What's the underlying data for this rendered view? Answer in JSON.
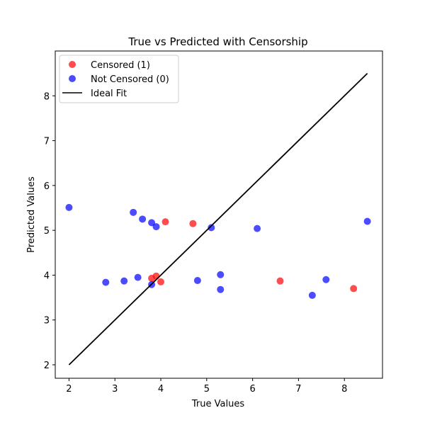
{
  "chart_data": {
    "type": "scatter",
    "title": "True vs Predicted with Censorship",
    "xlabel": "True Values",
    "ylabel": "Predicted Values",
    "xlim": [
      1.7,
      8.83
    ],
    "ylim": [
      1.7,
      9.0
    ],
    "xticks": [
      2,
      3,
      4,
      5,
      6,
      7,
      8
    ],
    "yticks": [
      2,
      3,
      4,
      5,
      6,
      7,
      8
    ],
    "grid": false,
    "legend_position": "top-left",
    "series": [
      {
        "name": "Censored (1)",
        "color": "#ff0000",
        "points": [
          [
            3.8,
            3.93
          ],
          [
            3.9,
            3.98
          ],
          [
            4.0,
            3.85
          ],
          [
            4.1,
            5.19
          ],
          [
            4.7,
            5.15
          ],
          [
            6.6,
            3.87
          ],
          [
            8.2,
            3.7
          ]
        ]
      },
      {
        "name": "Not Censored (0)",
        "color": "#0000ff",
        "points": [
          [
            2.0,
            5.51
          ],
          [
            2.8,
            3.84
          ],
          [
            3.2,
            3.87
          ],
          [
            3.4,
            5.4
          ],
          [
            3.5,
            3.95
          ],
          [
            3.6,
            5.25
          ],
          [
            3.8,
            5.17
          ],
          [
            3.8,
            3.79
          ],
          [
            3.9,
            5.08
          ],
          [
            4.8,
            3.88
          ],
          [
            5.1,
            5.06
          ],
          [
            5.3,
            4.01
          ],
          [
            5.3,
            3.68
          ],
          [
            6.1,
            5.04
          ],
          [
            7.3,
            3.55
          ],
          [
            7.6,
            3.9
          ],
          [
            8.5,
            5.2
          ]
        ]
      }
    ],
    "ideal_fit": {
      "name": "Ideal Fit",
      "color": "#000000",
      "x": [
        2.0,
        8.5
      ],
      "y": [
        2.0,
        8.5
      ]
    }
  }
}
